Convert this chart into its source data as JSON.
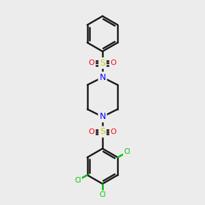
{
  "bg_color": "#ececec",
  "bond_color": "#1a1a1a",
  "N_color": "#0000ff",
  "S_color": "#cccc00",
  "O_color": "#ff0000",
  "Cl_color": "#00bb00",
  "bond_width": 1.8,
  "lw": 1.8,
  "xlim": [
    0,
    10
  ],
  "ylim": [
    0,
    12
  ]
}
